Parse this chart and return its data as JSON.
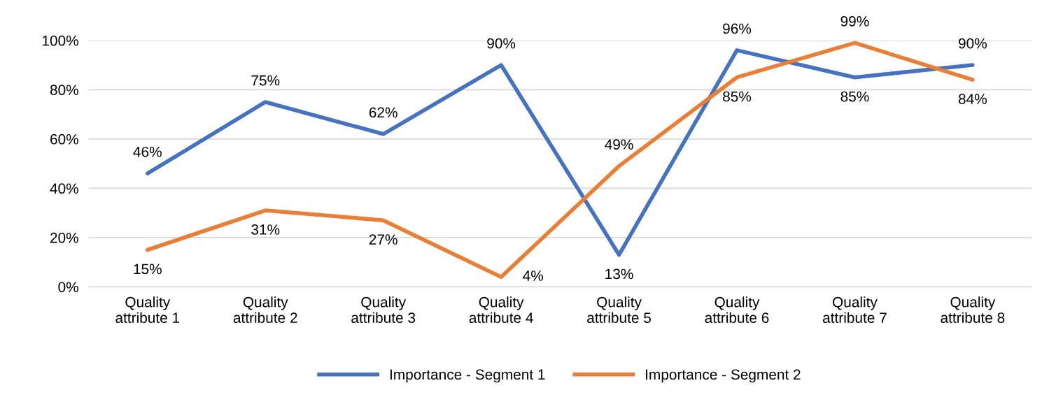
{
  "chart_data": {
    "type": "line",
    "categories": [
      "Quality\nattribute 1",
      "Quality\nattribute 2",
      "Quality\nattribute 3",
      "Quality\nattribute 4",
      "Quality\nattribute 5",
      "Quality\nattribute 6",
      "Quality\nattribute 7",
      "Quality\nattribute 8"
    ],
    "series": [
      {
        "name": "Importance - Segment 1",
        "color": "#4472c4",
        "values": [
          46,
          75,
          62,
          90,
          13,
          96,
          85,
          90
        ],
        "value_labels": [
          "46%",
          "75%",
          "62%",
          "90%",
          "13%",
          "96%",
          "85%",
          "90%"
        ]
      },
      {
        "name": "Importance - Segment 2",
        "color": "#ed7d31",
        "values": [
          15,
          31,
          27,
          4,
          49,
          85,
          99,
          84
        ],
        "value_labels": [
          "15%",
          "31%",
          "27%",
          "4%",
          "49%",
          "85%",
          "99%",
          "84%"
        ]
      }
    ],
    "ylim": [
      0,
      100
    ],
    "yticks": [
      {
        "value": 0,
        "label": "0%"
      },
      {
        "value": 20,
        "label": "20%"
      },
      {
        "value": 40,
        "label": "40%"
      },
      {
        "value": 60,
        "label": "60%"
      },
      {
        "value": 80,
        "label": "80%"
      },
      {
        "value": 100,
        "label": "100%"
      }
    ],
    "grid": "y",
    "legend": "bottom",
    "marker": "none",
    "line_style": "solid"
  }
}
